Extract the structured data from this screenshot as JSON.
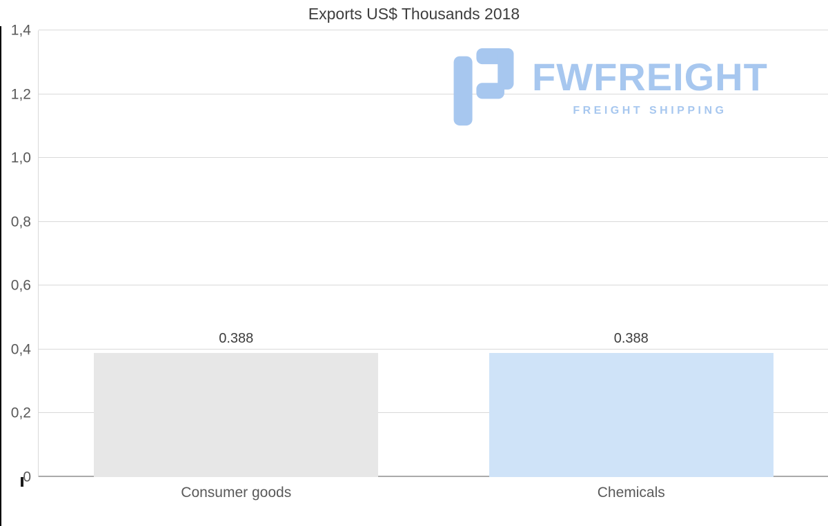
{
  "title": "Exports US$ Thousands 2018",
  "watermark": {
    "brand": "FWFREIGHT",
    "tagline": "FREIGHT SHIPPING"
  },
  "colors": {
    "logo_blue": "#a7c7ef",
    "bar_gray": "#e7e7e7",
    "bar_blue": "#cfe3f8",
    "grid": "#d9d9d9",
    "axis_label": "#595959"
  },
  "chart_data": {
    "type": "bar",
    "title": "Exports US$ Thousands 2018",
    "categories": [
      "Consumer goods",
      "Chemicals"
    ],
    "values": [
      0.388,
      0.388
    ],
    "value_labels": [
      "0.388",
      "0.388"
    ],
    "bar_colors": [
      "#e7e7e7",
      "#cfe3f8"
    ],
    "ylim": [
      0,
      1.4
    ],
    "ytick_step": 0.2,
    "ytick_labels": [
      "0",
      "0,2",
      "0,4",
      "0,6",
      "0,8",
      "1,0",
      "1,2",
      "1,4"
    ],
    "grid": true,
    "legend": "none"
  }
}
